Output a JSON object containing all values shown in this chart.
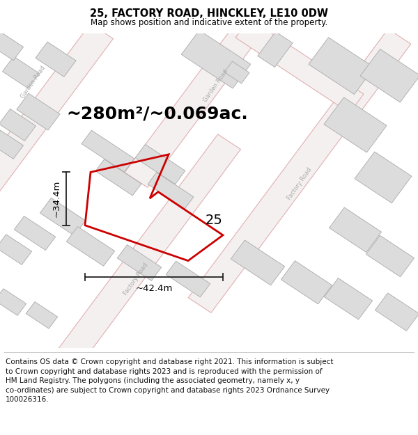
{
  "title": "25, FACTORY ROAD, HINCKLEY, LE10 0DW",
  "subtitle": "Map shows position and indicative extent of the property.",
  "area_text": "~280m²/~0.069ac.",
  "label_25": "25",
  "dim_width": "~42.4m",
  "dim_height": "~34.4m",
  "footer": "Contains OS data © Crown copyright and database right 2021. This information is subject\nto Crown copyright and database rights 2023 and is reproduced with the permission of\nHM Land Registry. The polygons (including the associated geometry, namely x, y\nco-ordinates) are subject to Crown copyright and database rights 2023 Ordnance Survey\n100026316.",
  "map_bg": "#f5f3f3",
  "road_fill": "#f5f0f0",
  "road_edge": "#e0b0b0",
  "building_fill": "#dcdcdc",
  "building_edge": "#aaaaaa",
  "property_edge": "#cc0000",
  "dim_color": "#222222",
  "road_label_color": "#aaaaaa",
  "title_fontsize": 10.5,
  "subtitle_fontsize": 8.5,
  "area_fontsize": 18,
  "label_fontsize": 14,
  "dim_fontsize": 9.5,
  "footer_fontsize": 7.5,
  "road_label_fontsize": 6.0,
  "road_lw": 0.8,
  "building_lw": 0.6,
  "property_lw": 2.0
}
